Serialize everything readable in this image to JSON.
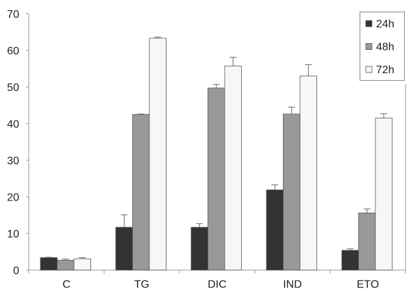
{
  "chart_data": {
    "type": "bar",
    "title": "",
    "xlabel": "",
    "ylabel": "",
    "ylim": [
      0,
      70
    ],
    "yticks": [
      0,
      10,
      20,
      30,
      40,
      50,
      60,
      70
    ],
    "grid": false,
    "legend_position": "top-right",
    "categories": [
      "C",
      "TG",
      "DIC",
      "IND",
      "ETO"
    ],
    "series": [
      {
        "name": "24h",
        "color": "#333333",
        "values": [
          3.4,
          11.7,
          11.7,
          21.9,
          5.4
        ],
        "errors": [
          0.1,
          3.4,
          1.0,
          1.4,
          0.4
        ]
      },
      {
        "name": "48h",
        "color": "#999999",
        "values": [
          2.7,
          42.5,
          49.7,
          42.6,
          15.6
        ],
        "errors": [
          0.3,
          0.1,
          1.0,
          1.9,
          1.1
        ]
      },
      {
        "name": "72h",
        "color": "#f7f7f7",
        "values": [
          3.1,
          63.3,
          55.7,
          53.0,
          41.5
        ],
        "errors": [
          0.3,
          0.3,
          2.4,
          3.1,
          1.2
        ]
      }
    ]
  }
}
